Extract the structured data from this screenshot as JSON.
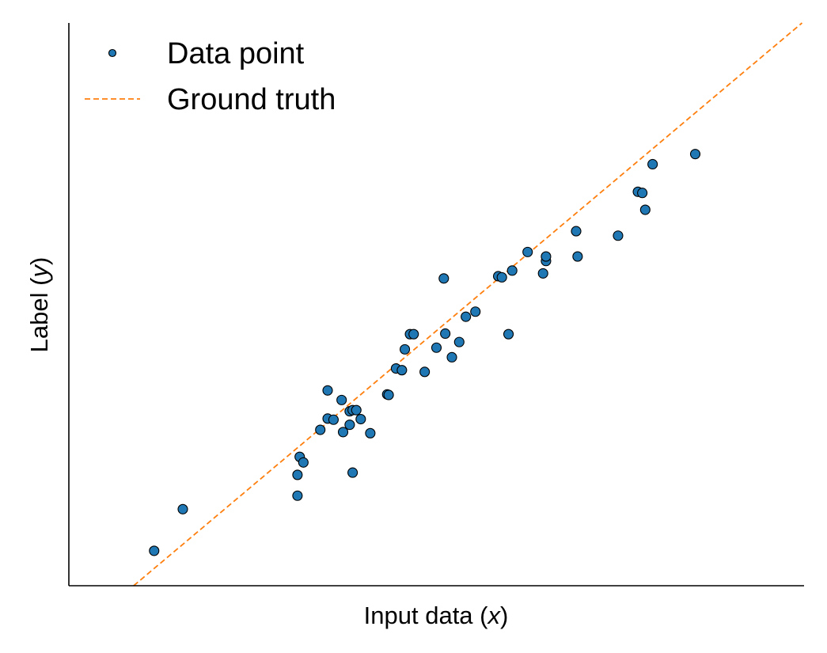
{
  "chart_data": {
    "type": "scatter",
    "xlabel": {
      "prefix": "Input data (",
      "var": "x",
      "suffix": ")"
    },
    "ylabel": {
      "prefix": "Label (",
      "var": "y",
      "suffix": ")"
    },
    "xlim": [
      0,
      10
    ],
    "ylim": [
      0,
      10
    ],
    "grid": false,
    "legend": {
      "placement": "top-left",
      "entries": [
        {
          "label": "Data point",
          "marker": "circle"
        },
        {
          "label": "Ground truth",
          "marker": "dashed-line"
        }
      ]
    },
    "colors": {
      "points": "#1f77b4",
      "ground_truth": "#ff7f0e",
      "point_edge": "#000000"
    },
    "ground_truth": {
      "slope": 1.1,
      "intercept": -0.97
    },
    "series": [
      {
        "kind": "points",
        "points": [
          {
            "x": 1.16,
            "y": 0.62
          },
          {
            "x": 1.55,
            "y": 1.36
          },
          {
            "x": 3.11,
            "y": 1.6
          },
          {
            "x": 3.11,
            "y": 1.97
          },
          {
            "x": 3.14,
            "y": 2.29
          },
          {
            "x": 3.19,
            "y": 2.19
          },
          {
            "x": 3.42,
            "y": 2.77
          },
          {
            "x": 3.52,
            "y": 2.97
          },
          {
            "x": 3.6,
            "y": 2.95
          },
          {
            "x": 3.52,
            "y": 3.47
          },
          {
            "x": 3.73,
            "y": 2.73
          },
          {
            "x": 3.71,
            "y": 3.3
          },
          {
            "x": 3.82,
            "y": 2.86
          },
          {
            "x": 3.82,
            "y": 3.1
          },
          {
            "x": 3.86,
            "y": 3.12
          },
          {
            "x": 3.86,
            "y": 2.01
          },
          {
            "x": 3.91,
            "y": 3.12
          },
          {
            "x": 3.97,
            "y": 2.96
          },
          {
            "x": 4.1,
            "y": 2.71
          },
          {
            "x": 4.33,
            "y": 3.4
          },
          {
            "x": 4.35,
            "y": 3.39
          },
          {
            "x": 4.45,
            "y": 3.86
          },
          {
            "x": 4.53,
            "y": 3.83
          },
          {
            "x": 4.57,
            "y": 4.2
          },
          {
            "x": 4.64,
            "y": 4.47
          },
          {
            "x": 4.69,
            "y": 4.47
          },
          {
            "x": 4.84,
            "y": 3.8
          },
          {
            "x": 5.0,
            "y": 4.23
          },
          {
            "x": 5.1,
            "y": 5.46
          },
          {
            "x": 5.12,
            "y": 4.48
          },
          {
            "x": 5.21,
            "y": 4.06
          },
          {
            "x": 5.31,
            "y": 4.33
          },
          {
            "x": 5.4,
            "y": 4.78
          },
          {
            "x": 5.53,
            "y": 4.87
          },
          {
            "x": 5.84,
            "y": 5.5
          },
          {
            "x": 5.89,
            "y": 5.48
          },
          {
            "x": 5.98,
            "y": 4.47
          },
          {
            "x": 6.03,
            "y": 5.6
          },
          {
            "x": 6.24,
            "y": 5.93
          },
          {
            "x": 6.45,
            "y": 5.55
          },
          {
            "x": 6.49,
            "y": 5.77
          },
          {
            "x": 6.49,
            "y": 5.85
          },
          {
            "x": 6.9,
            "y": 6.3
          },
          {
            "x": 6.92,
            "y": 5.85
          },
          {
            "x": 7.47,
            "y": 6.22
          },
          {
            "x": 7.74,
            "y": 7.0
          },
          {
            "x": 7.8,
            "y": 6.98
          },
          {
            "x": 7.84,
            "y": 6.68
          },
          {
            "x": 7.94,
            "y": 7.49
          },
          {
            "x": 8.52,
            "y": 7.67
          }
        ]
      }
    ]
  }
}
